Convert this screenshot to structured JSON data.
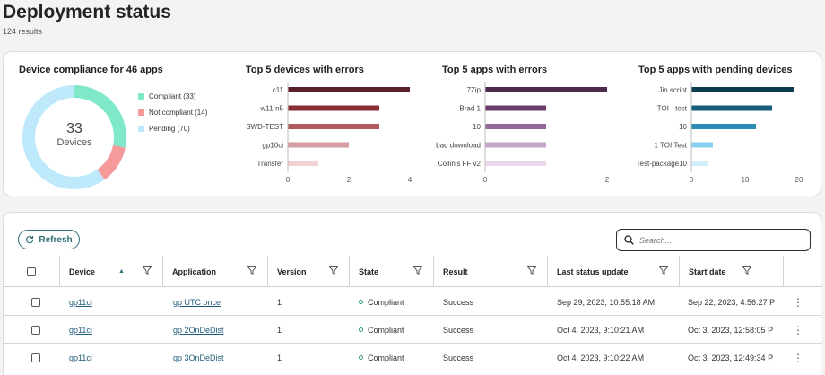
{
  "page": {
    "title": "Deployment status",
    "result_count": "124 results"
  },
  "compliance": {
    "title": "Device compliance for 46 apps",
    "center_value": "33",
    "center_label": "Devices",
    "segments": [
      {
        "label": "Compliant (33)",
        "value": 33,
        "color": "#7fe8c9"
      },
      {
        "label": "Not compliant (14)",
        "value": 14,
        "color": "#f59a9a"
      },
      {
        "label": "Pending (70)",
        "value": 70,
        "color": "#bde9fb"
      }
    ]
  },
  "bar_charts": [
    {
      "title": "Top 5 devices with errors",
      "max": 4,
      "ticks": [
        "0",
        "2",
        "4"
      ],
      "bars": [
        {
          "label": "c11",
          "value": 4,
          "color": "#5a1f24"
        },
        {
          "label": "w11-n5",
          "value": 3,
          "color": "#8a2e34"
        },
        {
          "label": "SWD-TEST",
          "value": 3,
          "color": "#b05a5e"
        },
        {
          "label": "gp10ci",
          "value": 2,
          "color": "#d49d9f"
        },
        {
          "label": "Transfer",
          "value": 1,
          "color": "#f0d2d3"
        }
      ]
    },
    {
      "title": "Top 5 apps with errors",
      "max": 2,
      "ticks": [
        "0",
        "2"
      ],
      "bars": [
        {
          "label": "7Zip",
          "value": 2,
          "color": "#4e2a4c"
        },
        {
          "label": "Brad 1",
          "value": 1,
          "color": "#6d3d6a"
        },
        {
          "label": "10",
          "value": 1,
          "color": "#94699a"
        },
        {
          "label": "bad download",
          "value": 1,
          "color": "#c4a6c8"
        },
        {
          "label": "Collin's FF v2",
          "value": 1,
          "color": "#ead8ea"
        }
      ]
    },
    {
      "title": "Top 5 apps with pending devices",
      "max": 20,
      "ticks": [
        "0",
        "10",
        "20"
      ],
      "bars": [
        {
          "label": "Jin script",
          "value": 19,
          "color": "#0d3b4f"
        },
        {
          "label": "TOI - test",
          "value": 15,
          "color": "#155d7a"
        },
        {
          "label": "10",
          "value": 12,
          "color": "#2a8cb5"
        },
        {
          "label": "1 TOI Test",
          "value": 4,
          "color": "#86d0ee"
        },
        {
          "label": "Test-package10",
          "value": 3,
          "color": "#d2eefa"
        }
      ]
    }
  ],
  "toolbar": {
    "refresh_label": "Refresh",
    "search_placeholder": "Search..."
  },
  "table": {
    "columns": [
      "Device",
      "Application",
      "Version",
      "State",
      "Result",
      "Last status update",
      "Start date"
    ],
    "rows": [
      {
        "device": "gp11ci",
        "application": "gp UTC once",
        "version": "1",
        "state": "Compliant",
        "result": "Success",
        "last_update": "Sep 29, 2023, 10:55:18 AM",
        "start_date": "Sep 22, 2023, 4:56:27 P"
      },
      {
        "device": "gp11ci",
        "application": "gp 2OnDeDist",
        "version": "1",
        "state": "Compliant",
        "result": "Success",
        "last_update": "Oct 4, 2023, 9:10:21 AM",
        "start_date": "Oct 3, 2023, 12:58:05 P"
      },
      {
        "device": "gp11ci",
        "application": "gp 3OnDeDist",
        "version": "1",
        "state": "Compliant",
        "result": "Success",
        "last_update": "Oct 4, 2023, 9:10:22 AM",
        "start_date": "Oct 3, 2023, 12:49:34 P"
      }
    ]
  },
  "icons": {
    "refresh": "refresh-icon",
    "search": "search-icon",
    "filter": "filter-icon",
    "sort": "sort-ascending-icon",
    "more": "more-vertical-icon"
  }
}
